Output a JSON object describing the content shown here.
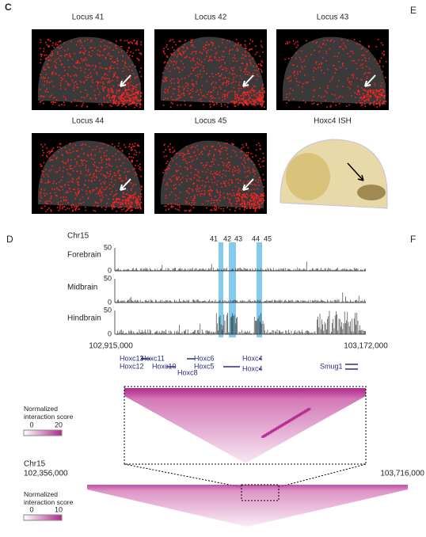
{
  "panels": {
    "c": "C",
    "e": "E",
    "d": "D",
    "f": "F"
  },
  "images": [
    {
      "title": "Locus 41"
    },
    {
      "title": "Locus 42"
    },
    {
      "title": "Locus 43"
    },
    {
      "title": "Locus 44"
    },
    {
      "title": "Locus 45"
    },
    {
      "title": "Hoxc4 ISH"
    }
  ],
  "tracks": {
    "chromosome": "Chr15",
    "locus_labels": [
      41,
      42,
      43,
      44,
      45
    ],
    "rows": [
      {
        "name": "Forebrain",
        "ymax": 50,
        "ymin": 0
      },
      {
        "name": "Midbrain",
        "ymax": 50,
        "ymin": 0
      },
      {
        "name": "Hindbrain",
        "ymax": 50,
        "ymin": 0
      }
    ],
    "start": "102,915,000",
    "end": "103,172,000"
  },
  "genes": [
    "Hoxc13",
    "Hoxc12",
    "Hoxc11",
    "Hoxc10",
    "Hoxc8",
    "Hoxc6",
    "Hoxc5",
    "Hoxc4",
    "Hoxc4",
    "Smug1"
  ],
  "heatmap_zoom": {
    "legend_title": "Normalized interaction score",
    "min": 0,
    "max": 20
  },
  "heatmap_full": {
    "chromosome": "Chr15",
    "start": "102,356,000",
    "end": "103,716,000",
    "legend_title": "Normalized interaction score",
    "min": 0,
    "max": 10
  }
}
